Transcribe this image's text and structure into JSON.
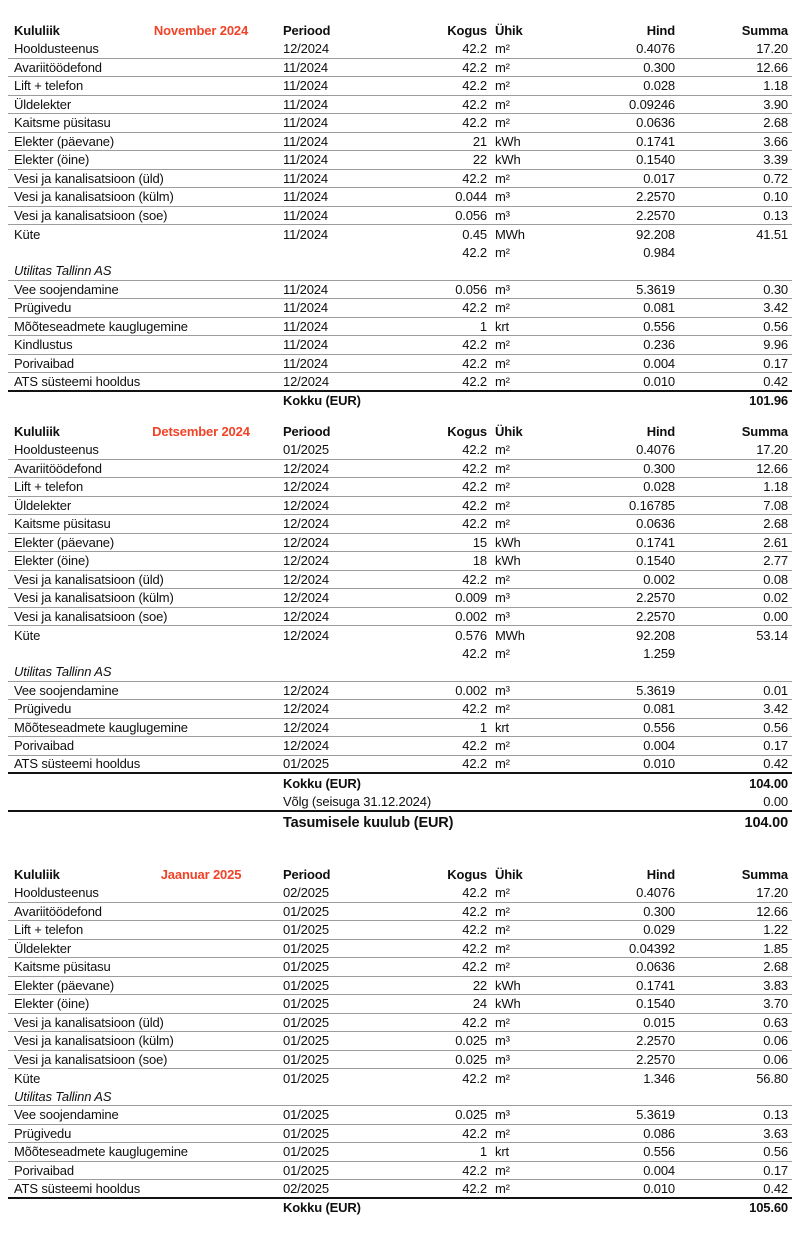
{
  "accent_color": "#f04327",
  "columns": {
    "kululiik": "Kululiik",
    "periood": "Periood",
    "kogus": "Kogus",
    "yhik": "Ühik",
    "hind": "Hind",
    "summa": "Summa"
  },
  "tables": [
    {
      "month": "November 2024",
      "rows": [
        {
          "t": "i",
          "label": "Hooldusteenus",
          "periood": "12/2024",
          "kogus": "42.2",
          "yhik": "m²",
          "hind": "0.4076",
          "summa": "17.20"
        },
        {
          "t": "i",
          "label": "Avariitöödefond",
          "periood": "11/2024",
          "kogus": "42.2",
          "yhik": "m²",
          "hind": "0.300",
          "summa": "12.66"
        },
        {
          "t": "i",
          "label": "Lift + telefon",
          "periood": "11/2024",
          "kogus": "42.2",
          "yhik": "m²",
          "hind": "0.028",
          "summa": "1.18"
        },
        {
          "t": "i",
          "label": "Üldelekter",
          "periood": "11/2024",
          "kogus": "42.2",
          "yhik": "m²",
          "hind": "0.09246",
          "summa": "3.90"
        },
        {
          "t": "i",
          "label": "Kaitsme püsitasu",
          "periood": "11/2024",
          "kogus": "42.2",
          "yhik": "m²",
          "hind": "0.0636",
          "summa": "2.68"
        },
        {
          "t": "i",
          "label": "Elekter (päevane)",
          "periood": "11/2024",
          "kogus": "21",
          "yhik": "kWh",
          "hind": "0.1741",
          "summa": "3.66"
        },
        {
          "t": "i",
          "label": "Elekter (öine)",
          "periood": "11/2024",
          "kogus": "22",
          "yhik": "kWh",
          "hind": "0.1540",
          "summa": "3.39"
        },
        {
          "t": "i",
          "label": "Vesi ja kanalisatsioon (üld)",
          "periood": "11/2024",
          "kogus": "42.2",
          "yhik": "m²",
          "hind": "0.017",
          "summa": "0.72"
        },
        {
          "t": "i",
          "label": "Vesi ja kanalisatsioon (külm)",
          "periood": "11/2024",
          "kogus": "0.044",
          "yhik": "m³",
          "hind": "2.2570",
          "summa": "0.10"
        },
        {
          "t": "i",
          "label": "Vesi ja kanalisatsioon (soe)",
          "periood": "11/2024",
          "kogus": "0.056",
          "yhik": "m³",
          "hind": "2.2570",
          "summa": "0.13"
        },
        {
          "t": "i",
          "nb": true,
          "label": "Küte",
          "periood": "11/2024",
          "kogus": "0.45",
          "yhik": "MWh",
          "hind": "92.208",
          "summa": "41.51"
        },
        {
          "t": "c",
          "nb": true,
          "label": "",
          "periood": "",
          "kogus": "42.2",
          "yhik": "m²",
          "hind": "0.984",
          "summa": ""
        },
        {
          "t": "s",
          "label": "Utilitas Tallinn AS",
          "periood": "",
          "kogus": "",
          "yhik": "",
          "hind": "",
          "summa": ""
        },
        {
          "t": "i",
          "label": "Vee soojendamine",
          "periood": "11/2024",
          "kogus": "0.056",
          "yhik": "m³",
          "hind": "5.3619",
          "summa": "0.30"
        },
        {
          "t": "i",
          "label": "Prügivedu",
          "periood": "11/2024",
          "kogus": "42.2",
          "yhik": "m²",
          "hind": "0.081",
          "summa": "3.42"
        },
        {
          "t": "i",
          "label": "Mõõteseadmete kauglugemine",
          "periood": "11/2024",
          "kogus": "1",
          "yhik": "krt",
          "hind": "0.556",
          "summa": "0.56"
        },
        {
          "t": "i",
          "label": "Kindlustus",
          "periood": "11/2024",
          "kogus": "42.2",
          "yhik": "m²",
          "hind": "0.236",
          "summa": "9.96"
        },
        {
          "t": "i",
          "label": "Porivaibad",
          "periood": "11/2024",
          "kogus": "42.2",
          "yhik": "m²",
          "hind": "0.004",
          "summa": "0.17"
        },
        {
          "t": "i",
          "label": "ATS süsteemi hooldus",
          "periood": "12/2024",
          "kogus": "42.2",
          "yhik": "m²",
          "hind": "0.010",
          "summa": "0.42"
        }
      ],
      "footer": [
        {
          "style": "kokku",
          "label": "Kokku (EUR)",
          "value": "101.96"
        }
      ]
    },
    {
      "month": "Detsember 2024",
      "rows": [
        {
          "t": "i",
          "label": "Hooldusteenus",
          "periood": "01/2025",
          "kogus": "42.2",
          "yhik": "m²",
          "hind": "0.4076",
          "summa": "17.20"
        },
        {
          "t": "i",
          "label": "Avariitöödefond",
          "periood": "12/2024",
          "kogus": "42.2",
          "yhik": "m²",
          "hind": "0.300",
          "summa": "12.66"
        },
        {
          "t": "i",
          "label": "Lift + telefon",
          "periood": "12/2024",
          "kogus": "42.2",
          "yhik": "m²",
          "hind": "0.028",
          "summa": "1.18"
        },
        {
          "t": "i",
          "label": "Üldelekter",
          "periood": "12/2024",
          "kogus": "42.2",
          "yhik": "m²",
          "hind": "0.16785",
          "summa": "7.08"
        },
        {
          "t": "i",
          "label": "Kaitsme püsitasu",
          "periood": "12/2024",
          "kogus": "42.2",
          "yhik": "m²",
          "hind": "0.0636",
          "summa": "2.68"
        },
        {
          "t": "i",
          "label": "Elekter (päevane)",
          "periood": "12/2024",
          "kogus": "15",
          "yhik": "kWh",
          "hind": "0.1741",
          "summa": "2.61"
        },
        {
          "t": "i",
          "label": "Elekter (öine)",
          "periood": "12/2024",
          "kogus": "18",
          "yhik": "kWh",
          "hind": "0.1540",
          "summa": "2.77"
        },
        {
          "t": "i",
          "label": "Vesi ja kanalisatsioon (üld)",
          "periood": "12/2024",
          "kogus": "42.2",
          "yhik": "m²",
          "hind": "0.002",
          "summa": "0.08"
        },
        {
          "t": "i",
          "label": "Vesi ja kanalisatsioon (külm)",
          "periood": "12/2024",
          "kogus": "0.009",
          "yhik": "m³",
          "hind": "2.2570",
          "summa": "0.02"
        },
        {
          "t": "i",
          "label": "Vesi ja kanalisatsioon (soe)",
          "periood": "12/2024",
          "kogus": "0.002",
          "yhik": "m³",
          "hind": "2.2570",
          "summa": "0.00"
        },
        {
          "t": "i",
          "nb": true,
          "label": "Küte",
          "periood": "12/2024",
          "kogus": "0.576",
          "yhik": "MWh",
          "hind": "92.208",
          "summa": "53.14"
        },
        {
          "t": "c",
          "nb": true,
          "label": "",
          "periood": "",
          "kogus": "42.2",
          "yhik": "m²",
          "hind": "1.259",
          "summa": ""
        },
        {
          "t": "s",
          "label": "Utilitas Tallinn AS",
          "periood": "",
          "kogus": "",
          "yhik": "",
          "hind": "",
          "summa": ""
        },
        {
          "t": "i",
          "label": "Vee soojendamine",
          "periood": "12/2024",
          "kogus": "0.002",
          "yhik": "m³",
          "hind": "5.3619",
          "summa": "0.01"
        },
        {
          "t": "i",
          "label": "Prügivedu",
          "periood": "12/2024",
          "kogus": "42.2",
          "yhik": "m²",
          "hind": "0.081",
          "summa": "3.42"
        },
        {
          "t": "i",
          "label": "Mõõteseadmete kauglugemine",
          "periood": "12/2024",
          "kogus": "1",
          "yhik": "krt",
          "hind": "0.556",
          "summa": "0.56"
        },
        {
          "t": "i",
          "label": "Porivaibad",
          "periood": "12/2024",
          "kogus": "42.2",
          "yhik": "m²",
          "hind": "0.004",
          "summa": "0.17"
        },
        {
          "t": "i",
          "label": "ATS süsteemi hooldus",
          "periood": "01/2025",
          "kogus": "42.2",
          "yhik": "m²",
          "hind": "0.010",
          "summa": "0.42"
        }
      ],
      "footer": [
        {
          "style": "kokku",
          "label": "Kokku (EUR)",
          "value": "104.00"
        },
        {
          "style": "volg",
          "label": "Võlg (seisuga 31.12.2024)",
          "value": "0.00"
        },
        {
          "style": "tasumisele",
          "label": "Tasumisele kuulub (EUR)",
          "value": "104.00"
        }
      ]
    },
    {
      "month": "Jaanuar 2025",
      "rows": [
        {
          "t": "i",
          "label": "Hooldusteenus",
          "periood": "02/2025",
          "kogus": "42.2",
          "yhik": "m²",
          "hind": "0.4076",
          "summa": "17.20"
        },
        {
          "t": "i",
          "label": "Avariitöödefond",
          "periood": "01/2025",
          "kogus": "42.2",
          "yhik": "m²",
          "hind": "0.300",
          "summa": "12.66"
        },
        {
          "t": "i",
          "label": "Lift + telefon",
          "periood": "01/2025",
          "kogus": "42.2",
          "yhik": "m²",
          "hind": "0.029",
          "summa": "1.22"
        },
        {
          "t": "i",
          "label": "Üldelekter",
          "periood": "01/2025",
          "kogus": "42.2",
          "yhik": "m²",
          "hind": "0.04392",
          "summa": "1.85"
        },
        {
          "t": "i",
          "label": "Kaitsme püsitasu",
          "periood": "01/2025",
          "kogus": "42.2",
          "yhik": "m²",
          "hind": "0.0636",
          "summa": "2.68"
        },
        {
          "t": "i",
          "label": "Elekter (päevane)",
          "periood": "01/2025",
          "kogus": "22",
          "yhik": "kWh",
          "hind": "0.1741",
          "summa": "3.83"
        },
        {
          "t": "i",
          "label": "Elekter (öine)",
          "periood": "01/2025",
          "kogus": "24",
          "yhik": "kWh",
          "hind": "0.1540",
          "summa": "3.70"
        },
        {
          "t": "i",
          "label": "Vesi ja kanalisatsioon (üld)",
          "periood": "01/2025",
          "kogus": "42.2",
          "yhik": "m²",
          "hind": "0.015",
          "summa": "0.63"
        },
        {
          "t": "i",
          "label": "Vesi ja kanalisatsioon (külm)",
          "periood": "01/2025",
          "kogus": "0.025",
          "yhik": "m³",
          "hind": "2.2570",
          "summa": "0.06"
        },
        {
          "t": "i",
          "label": "Vesi ja kanalisatsioon (soe)",
          "periood": "01/2025",
          "kogus": "0.025",
          "yhik": "m³",
          "hind": "2.2570",
          "summa": "0.06"
        },
        {
          "t": "i",
          "nb": true,
          "label": "Küte",
          "periood": "01/2025",
          "kogus": "42.2",
          "yhik": "m²",
          "hind": "1.346",
          "summa": "56.80"
        },
        {
          "t": "s",
          "label": "Utilitas Tallinn AS",
          "periood": "",
          "kogus": "",
          "yhik": "",
          "hind": "",
          "summa": ""
        },
        {
          "t": "i",
          "label": "Vee soojendamine",
          "periood": "01/2025",
          "kogus": "0.025",
          "yhik": "m³",
          "hind": "5.3619",
          "summa": "0.13"
        },
        {
          "t": "i",
          "label": "Prügivedu",
          "periood": "01/2025",
          "kogus": "42.2",
          "yhik": "m²",
          "hind": "0.086",
          "summa": "3.63"
        },
        {
          "t": "i",
          "label": "Mõõteseadmete kauglugemine",
          "periood": "01/2025",
          "kogus": "1",
          "yhik": "krt",
          "hind": "0.556",
          "summa": "0.56"
        },
        {
          "t": "i",
          "label": "Porivaibad",
          "periood": "01/2025",
          "kogus": "42.2",
          "yhik": "m²",
          "hind": "0.004",
          "summa": "0.17"
        },
        {
          "t": "i",
          "label": "ATS süsteemi hooldus",
          "periood": "02/2025",
          "kogus": "42.2",
          "yhik": "m²",
          "hind": "0.010",
          "summa": "0.42"
        }
      ],
      "footer": [
        {
          "style": "kokku",
          "label": "Kokku (EUR)",
          "value": "105.60"
        }
      ]
    }
  ]
}
